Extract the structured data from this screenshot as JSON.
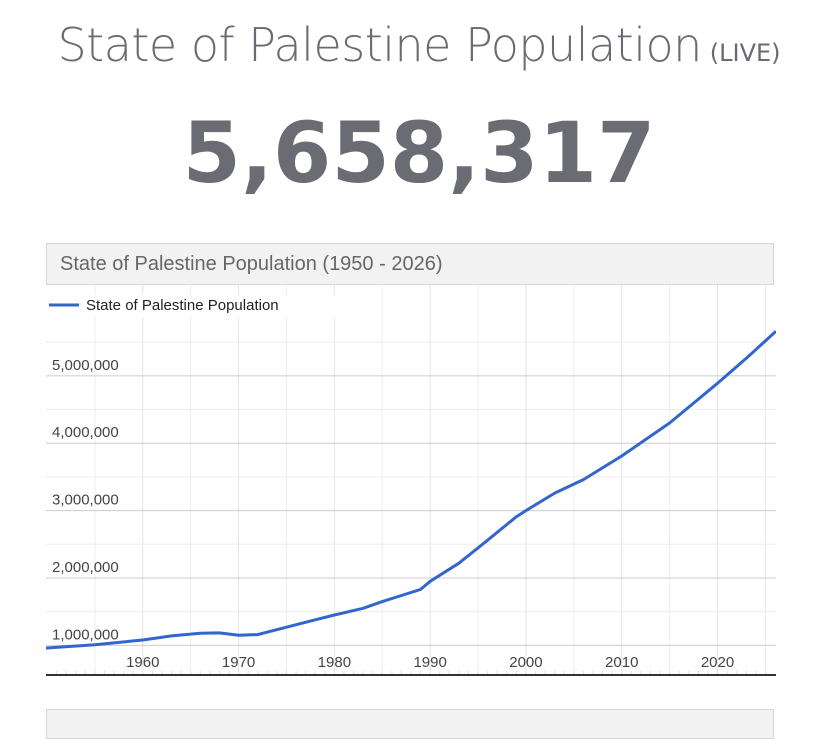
{
  "header": {
    "title": "State of Palestine Population",
    "live_label": "(LIVE)",
    "counter": "5,658,317"
  },
  "chart_header": {
    "title": "State of Palestine Population (1950 - 2026)"
  },
  "colors": {
    "line": "#3366cc",
    "grid": "#cccccc",
    "minor_grid": "#eeeeee",
    "text": "#444444"
  },
  "chart_data": {
    "type": "line",
    "title": "State of Palestine Population (1950 - 2026)",
    "xlabel": "",
    "ylabel": "",
    "legend": "top-left",
    "xlim": [
      1950,
      2026
    ],
    "ylim": [
      560000,
      6200000
    ],
    "x_ticks": [
      1960,
      1970,
      1980,
      1990,
      2000,
      2010,
      2020
    ],
    "y_ticks": [
      1000000,
      2000000,
      3000000,
      4000000,
      5000000
    ],
    "y_tick_labels": [
      "1,000,000",
      "2,000,000",
      "3,000,000",
      "4,000,000",
      "5,000,000"
    ],
    "series": [
      {
        "name": "State of Palestine Population",
        "x": [
          1950,
          1955,
          1960,
          1963,
          1966,
          1968,
          1970,
          1972,
          1975,
          1978,
          1980,
          1983,
          1985,
          1987,
          1989,
          1990,
          1993,
          1996,
          1999,
          2000,
          2003,
          2006,
          2010,
          2015,
          2020,
          2023,
          2026
        ],
        "values": [
          960000,
          1010000,
          1080000,
          1140000,
          1180000,
          1185000,
          1150000,
          1160000,
          1270000,
          1380000,
          1450000,
          1550000,
          1650000,
          1740000,
          1830000,
          1950000,
          2220000,
          2560000,
          2910000,
          3000000,
          3260000,
          3460000,
          3810000,
          4300000,
          4890000,
          5260000,
          5650000
        ]
      }
    ]
  }
}
